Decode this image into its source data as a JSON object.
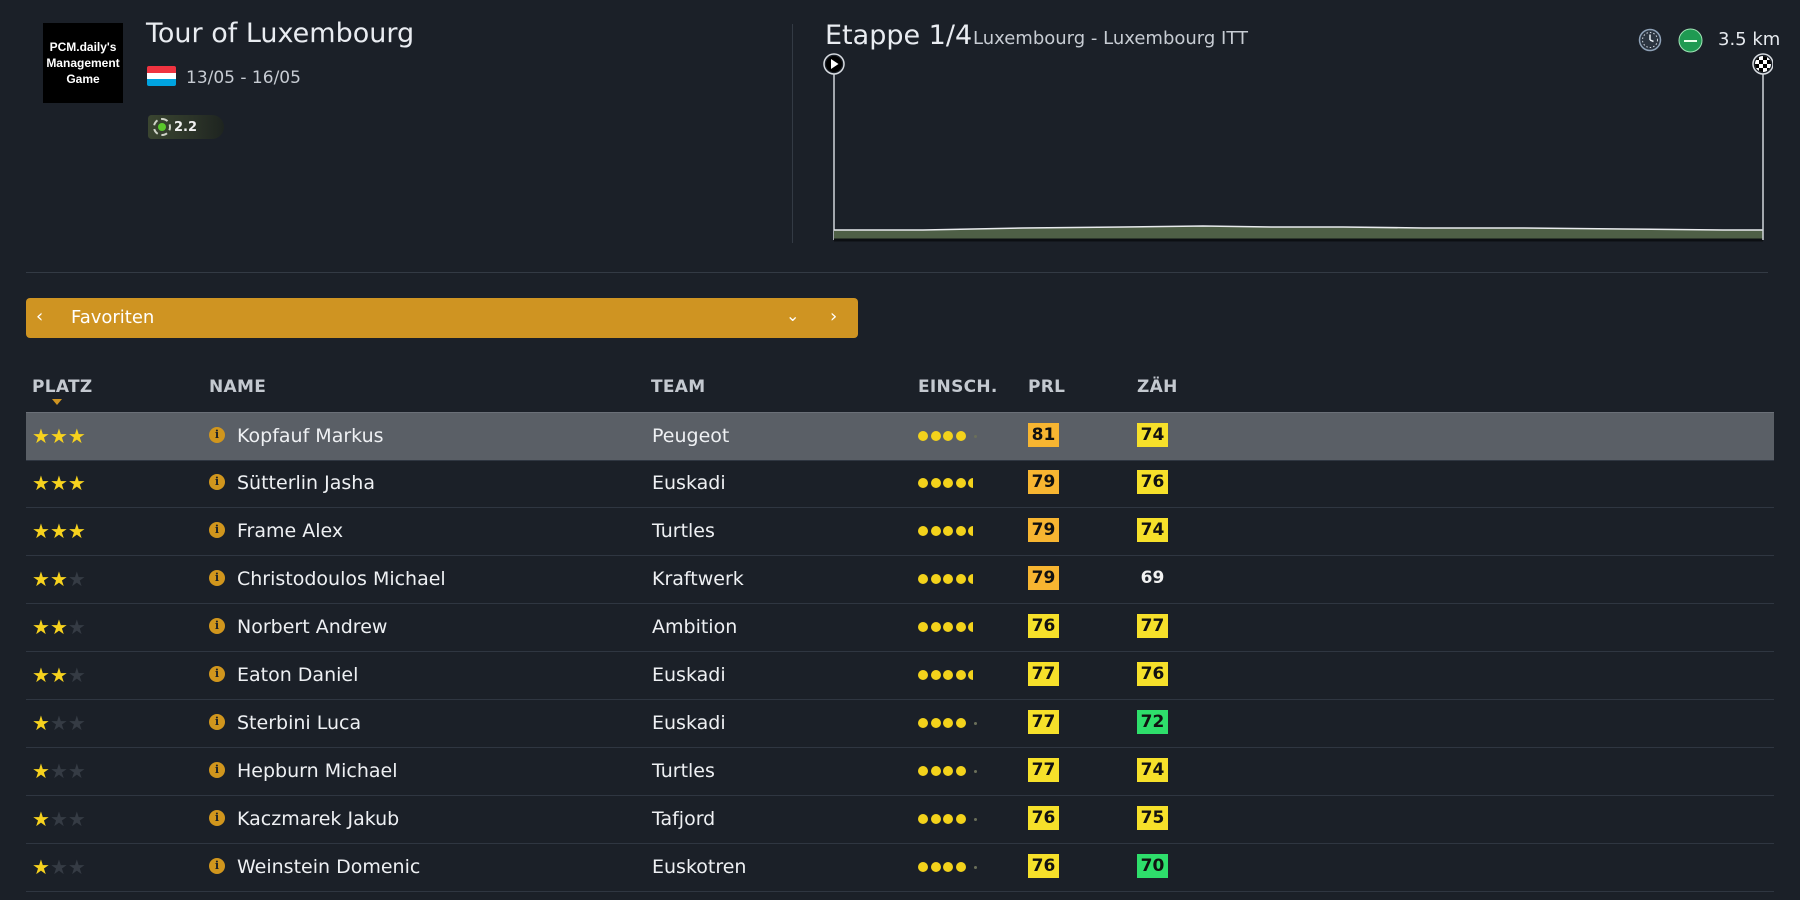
{
  "logo": {
    "text": "PCM.daily's Management Game"
  },
  "race": {
    "title": "Tour of Luxembourg",
    "dates": "13/05 - 16/05",
    "flag_colors": [
      "#ef3340",
      "#ffffff",
      "#00a3e0"
    ],
    "category": "2.2"
  },
  "stage": {
    "title": "Etappe 1/4",
    "route": "Luxembourg - Luxembourg ITT",
    "distance": "3.5 km",
    "icons": [
      "clock-icon",
      "flat-terrain-icon",
      "start-icon",
      "finish-flag-icon"
    ]
  },
  "filter": {
    "label": "Favoriten",
    "prev": "‹",
    "next": "›",
    "dropdown": "⌄"
  },
  "table": {
    "headers": {
      "platz": "PLATZ",
      "name": "NAME",
      "team": "TEAM",
      "einsch": "EINSCH.",
      "prl": "PRL",
      "zah": "ZÄH"
    },
    "rows": [
      {
        "stars": 3,
        "name": "Kopfauf Markus",
        "team": "Peugeot",
        "form": 4,
        "prl": "81",
        "prl_color": "orange",
        "zah": "74",
        "zah_color": "yellow",
        "selected": true
      },
      {
        "stars": 3,
        "name": "Sütterlin Jasha",
        "team": "Euskadi",
        "form": 4.5,
        "prl": "79",
        "prl_color": "orange",
        "zah": "76",
        "zah_color": "yellow"
      },
      {
        "stars": 3,
        "name": "Frame Alex",
        "team": "Turtles",
        "form": 4.5,
        "prl": "79",
        "prl_color": "orange",
        "zah": "74",
        "zah_color": "yellow"
      },
      {
        "stars": 2,
        "name": "Christodoulos Michael",
        "team": "Kraftwerk",
        "form": 4.5,
        "prl": "79",
        "prl_color": "orange",
        "zah": "69",
        "zah_color": "plain"
      },
      {
        "stars": 2,
        "name": "Norbert Andrew",
        "team": "Ambition",
        "form": 4.5,
        "prl": "76",
        "prl_color": "yellow",
        "zah": "77",
        "zah_color": "yellow"
      },
      {
        "stars": 2,
        "name": "Eaton Daniel",
        "team": "Euskadi",
        "form": 4.5,
        "prl": "77",
        "prl_color": "yellow",
        "zah": "76",
        "zah_color": "yellow"
      },
      {
        "stars": 1,
        "name": "Sterbini Luca",
        "team": "Euskadi",
        "form": 4,
        "prl": "77",
        "prl_color": "yellow",
        "zah": "72",
        "zah_color": "green"
      },
      {
        "stars": 1,
        "name": "Hepburn Michael",
        "team": "Turtles",
        "form": 4,
        "prl": "77",
        "prl_color": "yellow",
        "zah": "74",
        "zah_color": "yellow"
      },
      {
        "stars": 1,
        "name": "Kaczmarek Jakub",
        "team": "Tafjord",
        "form": 4,
        "prl": "76",
        "prl_color": "yellow",
        "zah": "75",
        "zah_color": "yellow"
      },
      {
        "stars": 1,
        "name": "Weinstein Domenic",
        "team": "Euskotren",
        "form": 4,
        "prl": "76",
        "prl_color": "yellow",
        "zah": "70",
        "zah_color": "green"
      }
    ]
  }
}
